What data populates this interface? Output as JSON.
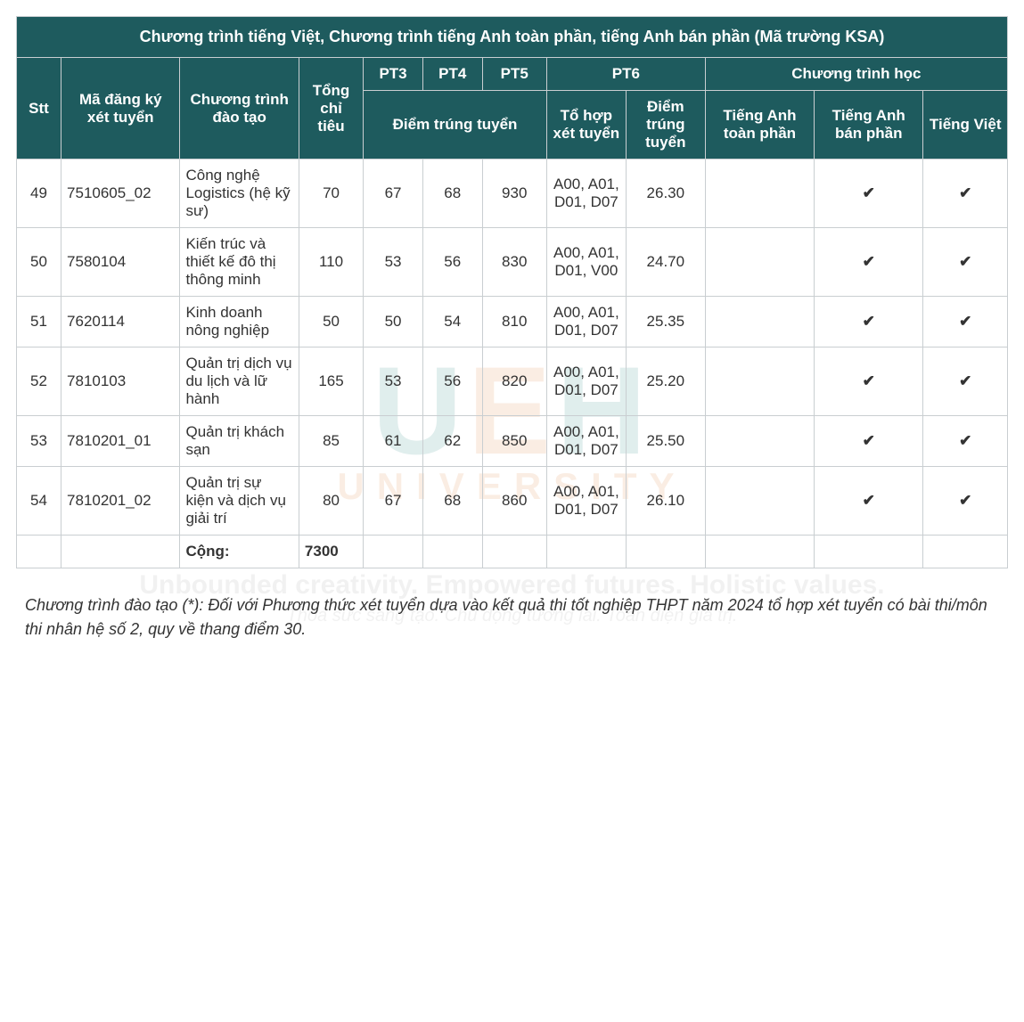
{
  "colors": {
    "header_bg": "#1e5b5e",
    "header_text": "#ffffff",
    "border": "#c9ced1",
    "body_text": "#333333",
    "watermark_teal": "#5aa5a0",
    "watermark_orange": "#e7a06a",
    "watermark_gray": "#b8b8b8"
  },
  "typography": {
    "body_font": "Arial",
    "body_size_pt": 13,
    "header_title_size_pt": 14,
    "footnote_size_pt": 14,
    "footnote_style": "italic"
  },
  "watermark": {
    "logo_text": "UEH",
    "university": "UNIVERSITY",
    "tagline_en": "Unbounded creativity. Empowered futures. Holistic values.",
    "tagline_vi": "Thỏa sức sáng tạo. Chủ động tương lai. Toàn diện giá trị."
  },
  "table": {
    "title": "Chương trình tiếng Việt, Chương trình tiếng Anh toàn phần, tiếng Anh bán phần (Mã trường KSA)",
    "headers": {
      "stt": "Stt",
      "code": "Mã đăng ký xét tuyển",
      "program": "Chương trình đào tạo",
      "quota": "Tổng chỉ tiêu",
      "pt3": "PT3",
      "pt4": "PT4",
      "pt5": "PT5",
      "pt6": "PT6",
      "curriculum": "Chương trình học",
      "score_group": "Điểm trúng tuyển",
      "pt6_combo": "Tổ hợp xét tuyển",
      "pt6_score": "Điểm trúng tuyển",
      "ch_full": "Tiếng Anh toàn phần",
      "ch_half": "Tiếng Anh bán phần",
      "ch_vi": "Tiếng Việt"
    },
    "rows": [
      {
        "stt": "49",
        "code": "7510605_02",
        "program": "Công nghệ Logistics (hệ kỹ sư)",
        "quota": "70",
        "pt3": "67",
        "pt4": "68",
        "pt5": "930",
        "pt6_combo": "A00, A01, D01, D07",
        "pt6_score": "26.30",
        "ch_full": "",
        "ch_half": "✔",
        "ch_vi": "✔"
      },
      {
        "stt": "50",
        "code": "7580104",
        "program": "Kiến trúc và thiết kế đô thị thông minh",
        "quota": "110",
        "pt3": "53",
        "pt4": "56",
        "pt5": "830",
        "pt6_combo": "A00, A01, D01, V00",
        "pt6_score": "24.70",
        "ch_full": "",
        "ch_half": "✔",
        "ch_vi": "✔"
      },
      {
        "stt": "51",
        "code": "7620114",
        "program": "Kinh doanh nông nghiệp",
        "quota": "50",
        "pt3": "50",
        "pt4": "54",
        "pt5": "810",
        "pt6_combo": "A00, A01, D01, D07",
        "pt6_score": "25.35",
        "ch_full": "",
        "ch_half": "✔",
        "ch_vi": "✔"
      },
      {
        "stt": "52",
        "code": "7810103",
        "program": "Quản trị dịch vụ du lịch và lữ hành",
        "quota": "165",
        "pt3": "53",
        "pt4": "56",
        "pt5": "820",
        "pt6_combo": "A00, A01, D01, D07",
        "pt6_score": "25.20",
        "ch_full": "",
        "ch_half": "✔",
        "ch_vi": "✔"
      },
      {
        "stt": "53",
        "code": "7810201_01",
        "program": "Quản trị khách sạn",
        "quota": "85",
        "pt3": "61",
        "pt4": "62",
        "pt5": "850",
        "pt6_combo": "A00, A01, D01, D07",
        "pt6_score": "25.50",
        "ch_full": "",
        "ch_half": "✔",
        "ch_vi": "✔"
      },
      {
        "stt": "54",
        "code": "7810201_02",
        "program": "Quản trị sự kiện và dịch vụ giải trí",
        "quota": "80",
        "pt3": "67",
        "pt4": "68",
        "pt5": "860",
        "pt6_combo": "A00, A01, D01, D07",
        "pt6_score": "26.10",
        "ch_full": "",
        "ch_half": "✔",
        "ch_vi": "✔"
      }
    ],
    "total_label": "Cộng:",
    "total_value": "7300"
  },
  "footnote": "Chương trình đào tạo (*): Đối với Phương thức xét tuyển dựa vào kết quả thi tốt nghiệp THPT năm 2024 tổ hợp xét tuyển có bài thi/môn thi nhân hệ số 2, quy về thang điểm 30."
}
